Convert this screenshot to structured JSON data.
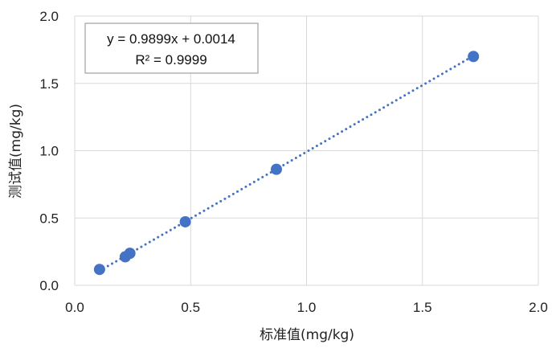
{
  "chart_data": {
    "type": "scatter",
    "title": "",
    "xlabel": "标准值(mg/kg)",
    "ylabel": "测试值(mg/kg)",
    "xlim": [
      0.0,
      2.0
    ],
    "ylim": [
      0.0,
      2.0
    ],
    "xticks": [
      "0.0",
      "0.5",
      "1.0",
      "1.5",
      "2.0"
    ],
    "yticks": [
      "0.0",
      "0.5",
      "1.0",
      "1.5",
      "2.0"
    ],
    "grid": true,
    "series": [
      {
        "points": [
          {
            "x": 0.107,
            "y": 0.118
          },
          {
            "x": 0.218,
            "y": 0.212
          },
          {
            "x": 0.238,
            "y": 0.238
          },
          {
            "x": 0.477,
            "y": 0.472
          },
          {
            "x": 0.87,
            "y": 0.862
          },
          {
            "x": 1.72,
            "y": 1.7
          }
        ],
        "color": "#4472C4"
      }
    ],
    "trendline": {
      "type": "linear",
      "slope": 0.9899,
      "intercept": 0.0014,
      "style": "dotted",
      "color": "#4472C4"
    },
    "annotation": {
      "equation": "y = 0.9899x + 0.0014",
      "r_squared": "R² = 0.9999",
      "placement": "top-left"
    }
  }
}
